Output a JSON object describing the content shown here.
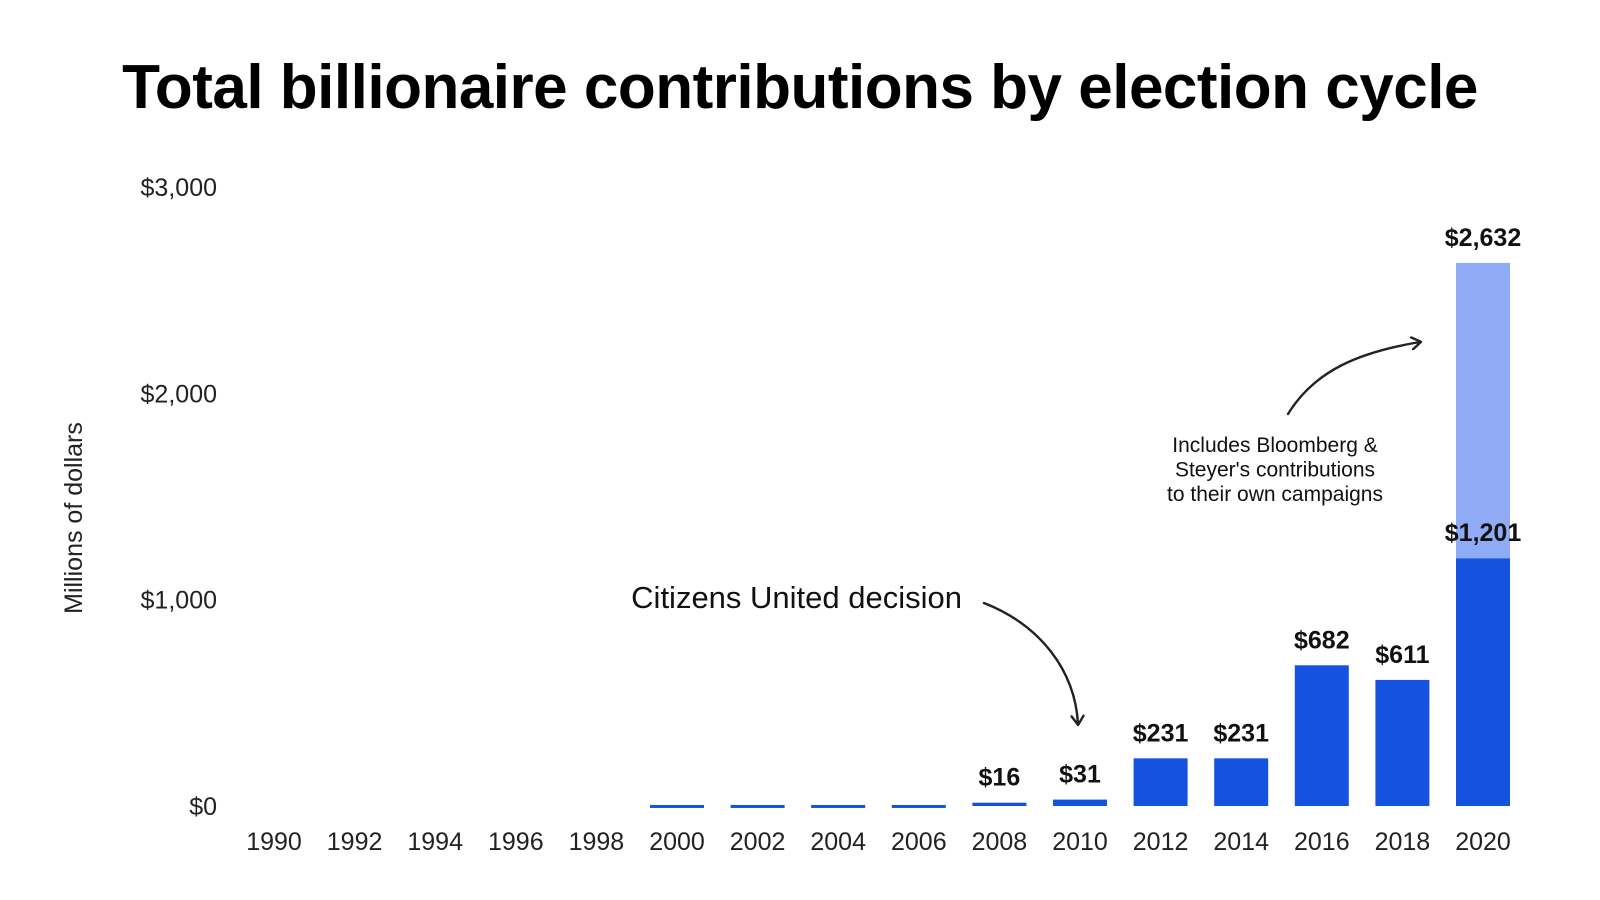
{
  "chart_data": {
    "type": "bar",
    "title": "Total billionaire contributions by election cycle",
    "ylabel": "Millions of dollars",
    "xlabel": "",
    "ylim": [
      0,
      3000
    ],
    "yticks": [
      0,
      1000,
      2000,
      3000
    ],
    "ytick_labels": [
      "$0",
      "$1,000",
      "$2,000",
      "$3,000"
    ],
    "grid": false,
    "categories": [
      "1990",
      "1992",
      "1994",
      "1996",
      "1998",
      "2000",
      "2002",
      "2004",
      "2006",
      "2008",
      "2010",
      "2012",
      "2014",
      "2016",
      "2018",
      "2020"
    ],
    "series": [
      {
        "values": [
          0,
          0,
          0,
          0,
          0,
          5,
          5,
          5,
          5,
          16,
          31,
          231,
          231,
          682,
          611,
          1201
        ],
        "data_labels": [
          "",
          "",
          "",
          "",
          "",
          "",
          "",
          "",
          "",
          "$16",
          "$31",
          "$231",
          "$231",
          "$682",
          "$611",
          "$1,201"
        ]
      },
      {
        "values": [
          0,
          0,
          0,
          0,
          0,
          0,
          0,
          0,
          0,
          0,
          0,
          0,
          0,
          0,
          0,
          1431
        ],
        "data_labels": [
          "",
          "",
          "",
          "",
          "",
          "",
          "",
          "",
          "",
          "",
          "",
          "",
          "",
          "",
          "",
          "$2,632"
        ]
      }
    ],
    "colors": {
      "primary": "#1652e0",
      "secondary": "#8fabf5"
    },
    "annotations": [
      {
        "text": "Citizens United decision",
        "points_to": "2010"
      },
      {
        "lines": [
          "Includes Bloomberg &",
          "Steyer's contributions",
          "to their own campaigns"
        ],
        "points_to": "2020"
      }
    ]
  }
}
